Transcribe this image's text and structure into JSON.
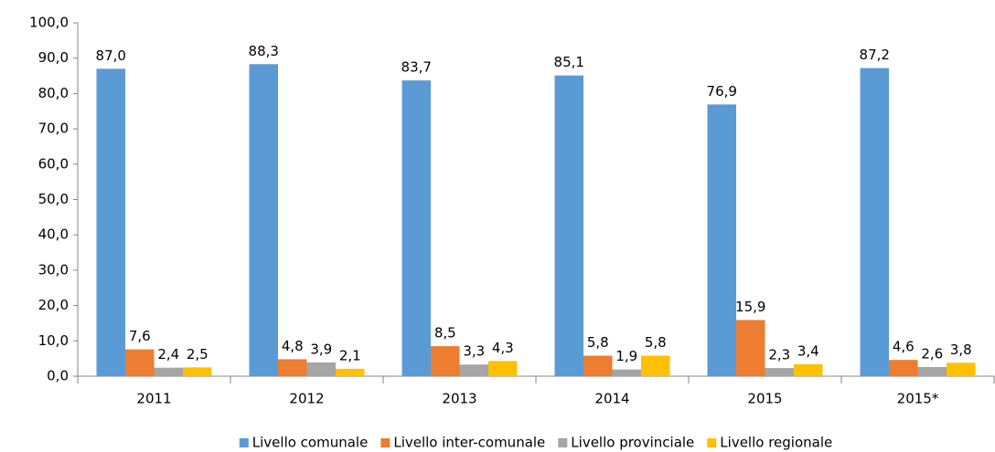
{
  "chart_data": {
    "type": "bar",
    "categories": [
      "2011",
      "2012",
      "2013",
      "2014",
      "2015",
      "2015*"
    ],
    "series": [
      {
        "name": "Livello comunale",
        "color": "#5b9bd5",
        "values": [
          87.0,
          88.3,
          83.7,
          85.1,
          76.9,
          87.2
        ],
        "value_labels": [
          "87,0",
          "88,3",
          "83,7",
          "85,1",
          "76,9",
          "87,2"
        ]
      },
      {
        "name": "Livello inter-comunale",
        "color": "#ed7d31",
        "values": [
          7.6,
          4.8,
          8.5,
          5.8,
          15.9,
          4.6
        ],
        "value_labels": [
          "7,6",
          "4,8",
          "8,5",
          "5,8",
          "15,9",
          "4,6"
        ]
      },
      {
        "name": "Livello provinciale",
        "color": "#a5a5a5",
        "values": [
          2.4,
          3.9,
          3.3,
          1.9,
          2.3,
          2.6
        ],
        "value_labels": [
          "2,4",
          "3,9",
          "3,3",
          "1,9",
          "2,3",
          "2,6"
        ]
      },
      {
        "name": "Livello regionale",
        "color": "#ffc000",
        "values": [
          2.5,
          2.1,
          4.3,
          5.8,
          3.4,
          3.8
        ],
        "value_labels": [
          "2,5",
          "2,1",
          "4,3",
          "5,8",
          "3,4",
          "3,8"
        ]
      }
    ],
    "ylim": [
      0,
      100
    ],
    "yticks": [
      {
        "value": 0,
        "label": "0,0"
      },
      {
        "value": 10,
        "label": "10,0"
      },
      {
        "value": 20,
        "label": "20,0"
      },
      {
        "value": 30,
        "label": "30,0"
      },
      {
        "value": 40,
        "label": "40,0"
      },
      {
        "value": 50,
        "label": "50,0"
      },
      {
        "value": 60,
        "label": "60,0"
      },
      {
        "value": 70,
        "label": "70,0"
      },
      {
        "value": 80,
        "label": "80,0"
      },
      {
        "value": 90,
        "label": "90,0"
      },
      {
        "value": 100,
        "label": "100,0"
      }
    ],
    "grid": false,
    "legend": "bottom"
  }
}
